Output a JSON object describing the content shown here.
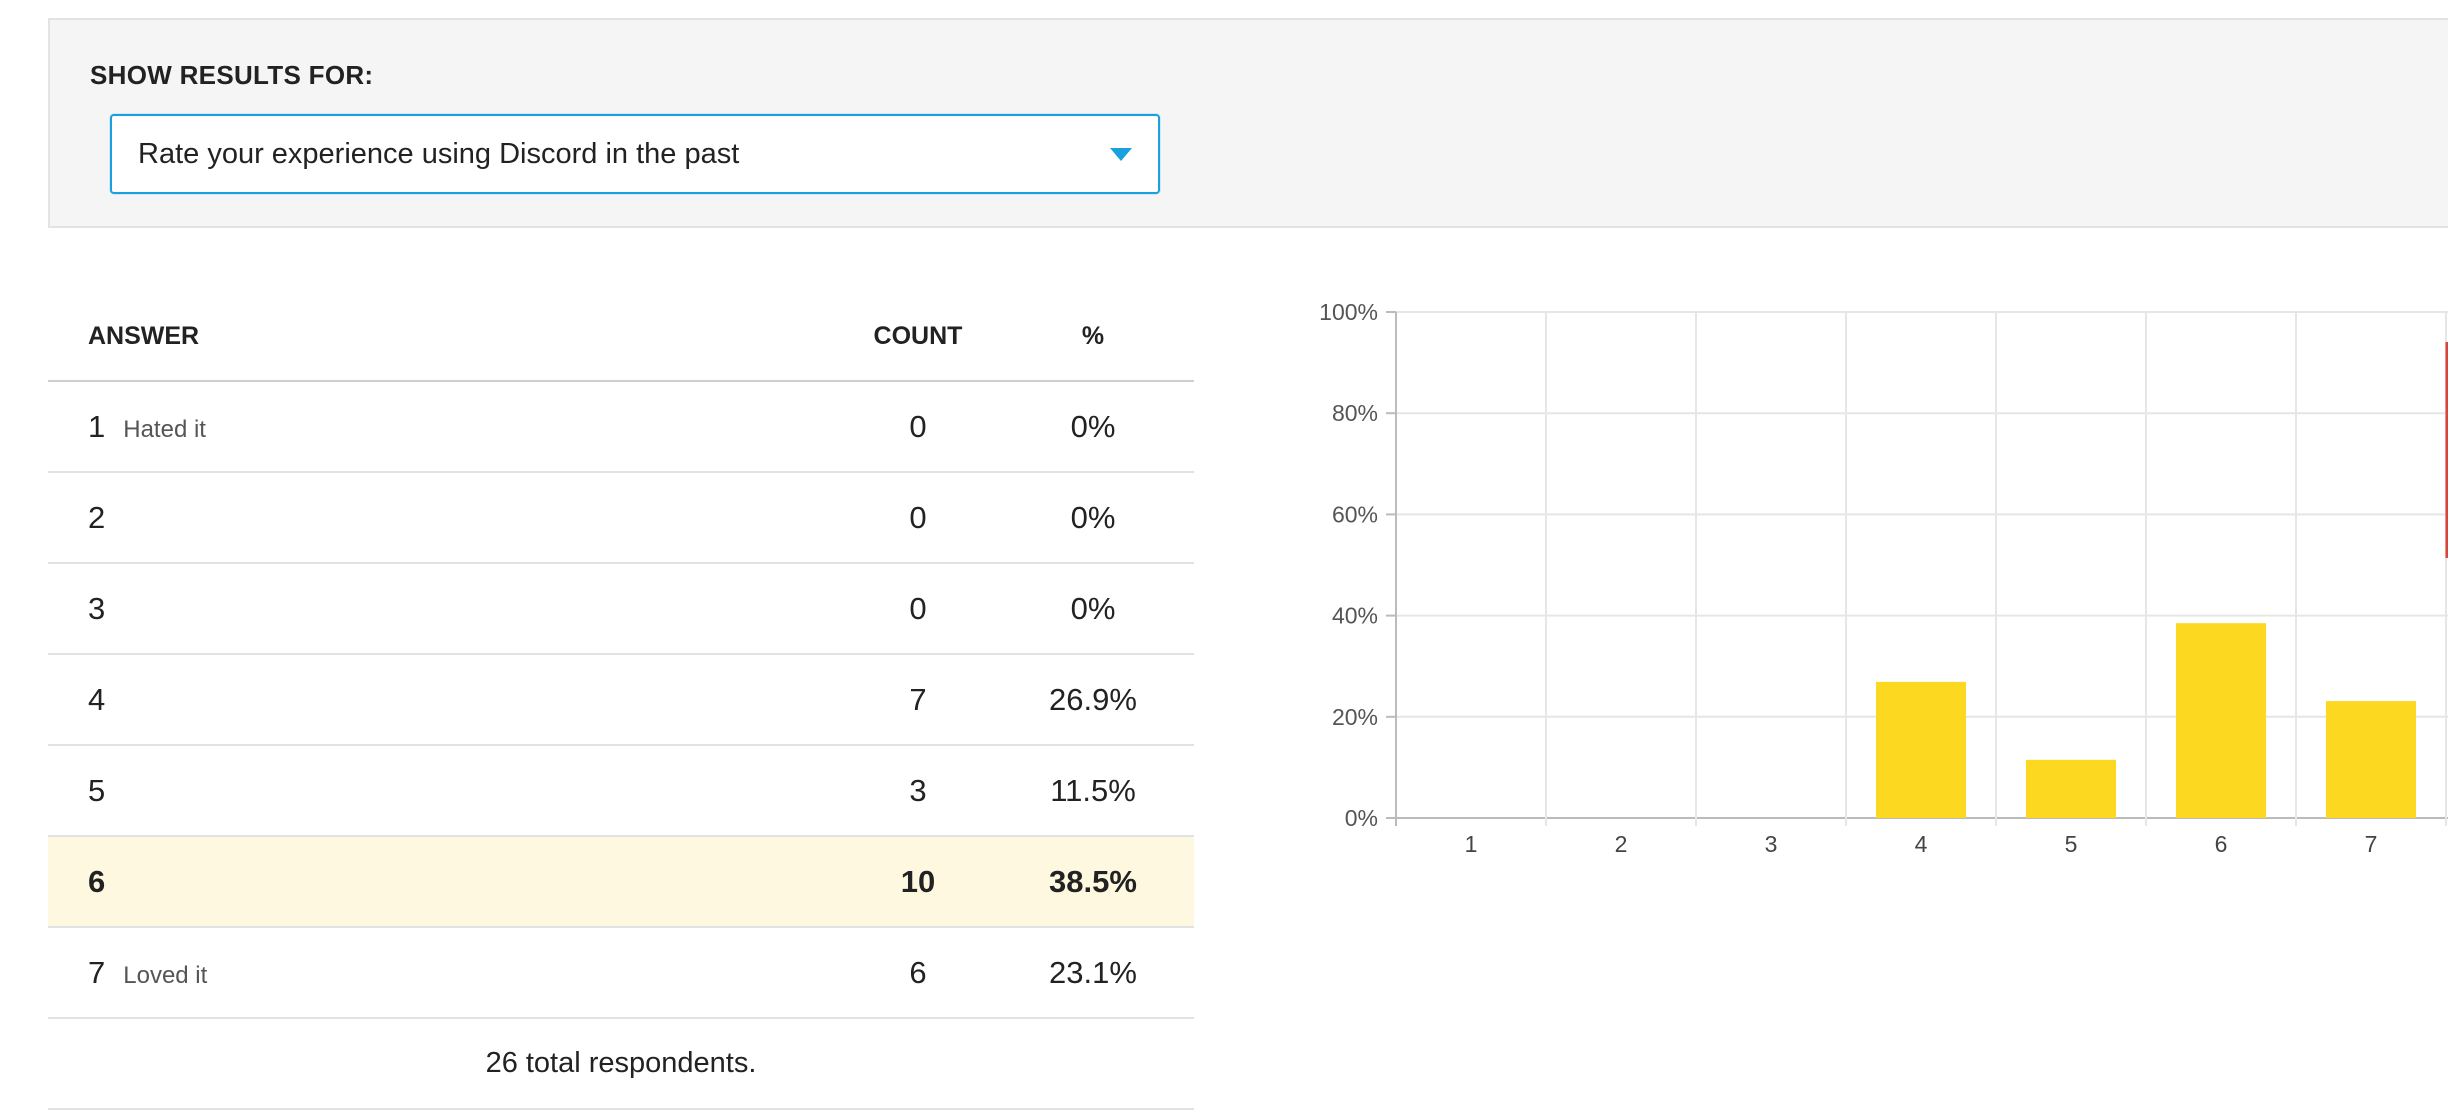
{
  "filter": {
    "label": "SHOW RESULTS FOR:",
    "selected_question": "Rate your experience using Discord in the past"
  },
  "table": {
    "headers": {
      "answer": "ANSWER",
      "count": "COUNT",
      "percent": "%"
    },
    "rows": [
      {
        "answer": "1",
        "desc": "Hated it",
        "count": "0",
        "percent": "0%"
      },
      {
        "answer": "2",
        "desc": "",
        "count": "0",
        "percent": "0%"
      },
      {
        "answer": "3",
        "desc": "",
        "count": "0",
        "percent": "0%"
      },
      {
        "answer": "4",
        "desc": "",
        "count": "7",
        "percent": "26.9%"
      },
      {
        "answer": "5",
        "desc": "",
        "count": "3",
        "percent": "11.5%"
      },
      {
        "answer": "6",
        "desc": "",
        "count": "10",
        "percent": "38.5%",
        "highlighted": true
      },
      {
        "answer": "7",
        "desc": "Loved it",
        "count": "6",
        "percent": "23.1%"
      }
    ],
    "total": "26 total respondents."
  },
  "colors": {
    "bar": "#fcd820",
    "highlight_row": "#fef8e0",
    "accent": "#1aa0dc",
    "marker": "#d9453a"
  },
  "chart_data": {
    "type": "bar",
    "categories": [
      "1",
      "2",
      "3",
      "4",
      "5",
      "6",
      "7"
    ],
    "values": [
      0,
      0,
      0,
      26.9,
      11.5,
      38.5,
      23.1
    ],
    "y_ticks": [
      "0%",
      "20%",
      "40%",
      "60%",
      "80%",
      "100%"
    ],
    "ylim": [
      0,
      100
    ],
    "grid": true,
    "title": "",
    "xlabel": "",
    "ylabel": ""
  }
}
